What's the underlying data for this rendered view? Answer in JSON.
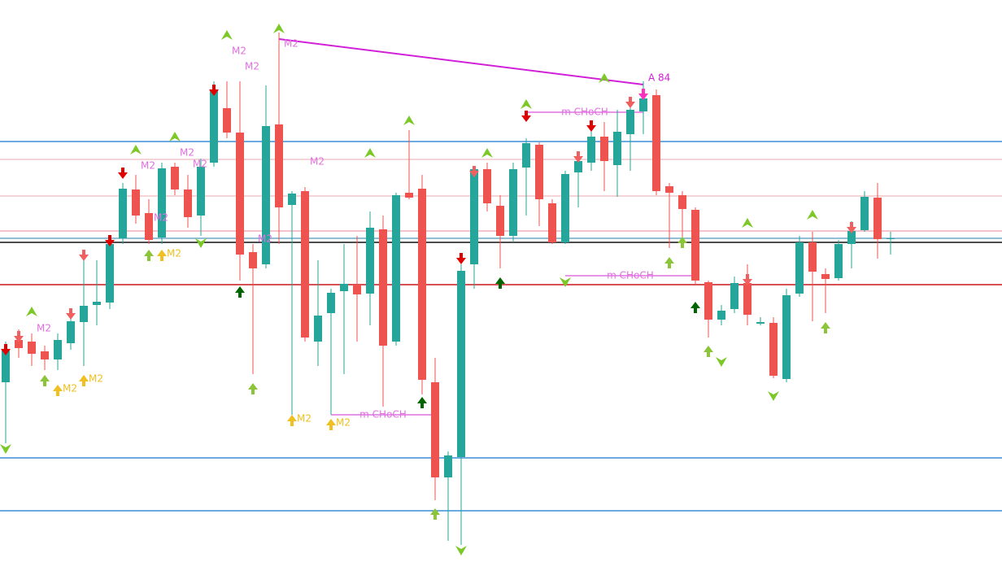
{
  "chart_data": {
    "type": "candlestick",
    "ylim": [
      0,
      707
    ],
    "up_color": "#26a69a",
    "down_color": "#ef5350",
    "open": [
      237,
      289,
      287,
      275,
      265,
      285,
      311,
      332,
      335,
      414,
      474,
      445,
      415,
      502,
      474,
      442,
      507,
      574,
      544,
      397,
      382,
      554,
      455,
      472,
      287,
      322,
      349,
      357,
      346,
      425,
      287,
      470,
      475,
      237,
      120,
      145,
      382,
      499,
      454,
      417,
      501,
      529,
      457,
      409,
      495,
      507,
      539,
      504,
      542,
      570,
      590,
      478,
      467,
      449,
      360,
      314,
      327,
      359,
      309,
      310,
      241,
      346,
      409,
      370,
      365,
      407,
      424,
      464,
      413
    ],
    "high": [
      287,
      302,
      297,
      282,
      297,
      322,
      387,
      387,
      417,
      482,
      492,
      462,
      507,
      507,
      492,
      512,
      607,
      607,
      607,
      407,
      602,
      667,
      472,
      477,
      387,
      352,
      407,
      417,
      447,
      442,
      470,
      547,
      492,
      267,
      152,
      382,
      502,
      507,
      467,
      507,
      537,
      532,
      462,
      497,
      517,
      552,
      557,
      572,
      587,
      607,
      597,
      482,
      472,
      452,
      362,
      332,
      367,
      382,
      317,
      317,
      352,
      417,
      422,
      377,
      412,
      435,
      472,
      482,
      422
    ],
    "low": [
      162,
      267,
      257,
      252,
      252,
      277,
      257,
      307,
      327,
      407,
      432,
      407,
      407,
      467,
      427,
      417,
      502,
      537,
      362,
      247,
      377,
      407,
      197,
      287,
      257,
      197,
      247,
      287,
      307,
      207,
      282,
      462,
      222,
      92,
      42,
      37,
      352,
      447,
      377,
      409,
      442,
      429,
      407,
      407,
      452,
      497,
      472,
      465,
      497,
      542,
      467,
      402,
      407,
      357,
      292,
      307,
      322,
      307,
      307,
      242,
      237,
      342,
      312,
      322,
      362,
      377,
      422,
      389,
      394
    ],
    "close": [
      277,
      279,
      272,
      265,
      289,
      312,
      331,
      336,
      407,
      475,
      442,
      412,
      500,
      474,
      440,
      502,
      597,
      544,
      394,
      377,
      552,
      452,
      469,
      292,
      319,
      347,
      358,
      345,
      427,
      282,
      467,
      464,
      240,
      120,
      147,
      374,
      499,
      457,
      417,
      499,
      531,
      462,
      409,
      493,
      509,
      539,
      509,
      545,
      572,
      586,
      472,
      470,
      450,
      362,
      314,
      325,
      359,
      320,
      311,
      245,
      344,
      409,
      373,
      364,
      407,
      423,
      465,
      413,
      414
    ],
    "levels": [
      {
        "value": 533,
        "color": "#3a8fd8"
      },
      {
        "value": 511,
        "color": "#f2c6cc"
      },
      {
        "value": 466,
        "color": "#f2c6cc"
      },
      {
        "value": 423,
        "color": "#f2b0b8"
      },
      {
        "value": 414,
        "color": "#6fa8c8"
      },
      {
        "value": 409,
        "color": "#111111"
      },
      {
        "value": 357,
        "color": "#c8161d"
      },
      {
        "value": 144,
        "color": "#3a8fd8"
      },
      {
        "value": 79,
        "color": "#3a8fd8"
      }
    ],
    "trendline": {
      "from": {
        "candle": 21,
        "value": 659
      },
      "to": {
        "candle": 49,
        "value": 603
      },
      "color": "#d020d8"
    },
    "choch": [
      {
        "text": "m CHoCH",
        "from": 40,
        "to": 49,
        "value": 569,
        "color": "#e070e0"
      },
      {
        "text": "m CHoCH",
        "from": 43,
        "to": 53,
        "value": 368,
        "color": "#e070e0"
      },
      {
        "text": "m CHoCH",
        "from": 25,
        "to": 33,
        "value": 197,
        "color": "#e070e0"
      }
    ],
    "signals": [
      {
        "kind": "down",
        "candle": 0,
        "value": 275,
        "color": "#e00000"
      },
      {
        "kind": "down",
        "candle": 8,
        "value": 409,
        "color": "#e00000"
      },
      {
        "kind": "down",
        "candle": 9,
        "value": 492,
        "color": "#e00000"
      },
      {
        "kind": "down",
        "candle": 16,
        "value": 594,
        "color": "#e00000"
      },
      {
        "kind": "down",
        "candle": 35,
        "value": 387,
        "color": "#e00000"
      },
      {
        "kind": "down",
        "candle": 40,
        "value": 562,
        "color": "#e00000"
      },
      {
        "kind": "down",
        "candle": 45,
        "value": 550,
        "color": "#e00000"
      },
      {
        "kind": "down",
        "candle": 1,
        "value": 291,
        "color": "#f06060"
      },
      {
        "kind": "down",
        "candle": 5,
        "value": 319,
        "color": "#f06060"
      },
      {
        "kind": "down",
        "candle": 6,
        "value": 391,
        "color": "#f06060"
      },
      {
        "kind": "down",
        "candle": 36,
        "value": 494,
        "color": "#f06060"
      },
      {
        "kind": "down",
        "candle": 44,
        "value": 512,
        "color": "#f06060"
      },
      {
        "kind": "down",
        "candle": 48,
        "value": 579,
        "color": "#f06060"
      },
      {
        "kind": "down",
        "candle": 57,
        "value": 361,
        "color": "#f06060"
      },
      {
        "kind": "down",
        "candle": 65,
        "value": 425,
        "color": "#f06060"
      },
      {
        "kind": "down",
        "candle": 49,
        "value": 589,
        "color": "#ff30c0"
      },
      {
        "kind": "up",
        "candle": 18,
        "value": 350,
        "color": "#006400"
      },
      {
        "kind": "up",
        "candle": 38,
        "value": 361,
        "color": "#006400"
      },
      {
        "kind": "up",
        "candle": 53,
        "value": 331,
        "color": "#006400"
      },
      {
        "kind": "up",
        "candle": 32,
        "value": 214,
        "color": "#006400"
      },
      {
        "kind": "up",
        "candle": 3,
        "value": 241,
        "color": "#8cc43a"
      },
      {
        "kind": "up",
        "candle": 11,
        "value": 395,
        "color": "#8cc43a"
      },
      {
        "kind": "up",
        "candle": 19,
        "value": 231,
        "color": "#8cc43a"
      },
      {
        "kind": "up",
        "candle": 33,
        "value": 77,
        "color": "#8cc43a"
      },
      {
        "kind": "up",
        "candle": 51,
        "value": 386,
        "color": "#8cc43a"
      },
      {
        "kind": "up",
        "candle": 52,
        "value": 411,
        "color": "#8cc43a"
      },
      {
        "kind": "up",
        "candle": 54,
        "value": 277,
        "color": "#8cc43a"
      },
      {
        "kind": "up",
        "candle": 63,
        "value": 306,
        "color": "#8cc43a"
      },
      {
        "kind": "tri-up",
        "candle": 2,
        "value": 322,
        "color": "#7cc828"
      },
      {
        "kind": "tri-up",
        "candle": 10,
        "value": 521,
        "color": "#7cc828"
      },
      {
        "kind": "tri-up",
        "candle": 13,
        "value": 537,
        "color": "#7cc828"
      },
      {
        "kind": "tri-up",
        "candle": 17,
        "value": 662,
        "color": "#7cc828"
      },
      {
        "kind": "tri-up",
        "candle": 21,
        "value": 670,
        "color": "#7cc828"
      },
      {
        "kind": "tri-up",
        "candle": 31,
        "value": 557,
        "color": "#7cc828"
      },
      {
        "kind": "tri-up",
        "candle": 28,
        "value": 517,
        "color": "#7cc828"
      },
      {
        "kind": "tri-up",
        "candle": 37,
        "value": 517,
        "color": "#7cc828"
      },
      {
        "kind": "tri-up",
        "candle": 40,
        "value": 577,
        "color": "#7cc828"
      },
      {
        "kind": "tri-up",
        "candle": 46,
        "value": 609,
        "color": "#7cc828"
      },
      {
        "kind": "tri-up",
        "candle": 57,
        "value": 431,
        "color": "#7cc828"
      },
      {
        "kind": "tri-up",
        "candle": 62,
        "value": 441,
        "color": "#7cc828"
      },
      {
        "kind": "tri-down",
        "candle": 0,
        "value": 157,
        "color": "#7cc828"
      },
      {
        "kind": "tri-down",
        "candle": 15,
        "value": 410,
        "color": "#7cc828"
      },
      {
        "kind": "tri-down",
        "candle": 43,
        "value": 362,
        "color": "#7cc828"
      },
      {
        "kind": "tri-down",
        "candle": 35,
        "value": 32,
        "color": "#7cc828"
      },
      {
        "kind": "tri-down",
        "candle": 59,
        "value": 222,
        "color": "#7cc828"
      },
      {
        "kind": "tri-down",
        "candle": 55,
        "value": 264,
        "color": "#7cc828"
      },
      {
        "kind": "up",
        "candle": 4,
        "value": 229,
        "color": "#f0c020"
      },
      {
        "kind": "up",
        "candle": 6,
        "value": 241,
        "color": "#f0c020"
      },
      {
        "kind": "up",
        "candle": 12,
        "value": 395,
        "color": "#f0c020"
      },
      {
        "kind": "up",
        "candle": 22,
        "value": 192,
        "color": "#f0c020"
      },
      {
        "kind": "up",
        "candle": 25,
        "value": 187,
        "color": "#f0c020"
      }
    ],
    "labels": [
      {
        "text": "M2",
        "candle": 2,
        "value": 303,
        "color": "#e070e0"
      },
      {
        "text": "M2",
        "candle": 10,
        "value": 503,
        "color": "#e070e0"
      },
      {
        "text": "M2",
        "candle": 13,
        "value": 519,
        "color": "#e070e0"
      },
      {
        "text": "M2",
        "candle": 14,
        "value": 505,
        "color": "#e070e0"
      },
      {
        "text": "M2",
        "candle": 17,
        "value": 644,
        "color": "#e070e0"
      },
      {
        "text": "M2",
        "candle": 18,
        "value": 625,
        "color": "#e070e0"
      },
      {
        "text": "M2",
        "candle": 21,
        "value": 653,
        "color": "#e070e0"
      },
      {
        "text": "M2",
        "candle": 23,
        "value": 508,
        "color": "#e070e0"
      },
      {
        "text": "M2",
        "candle": 11,
        "value": 439,
        "color": "#e070e0"
      },
      {
        "text": "M2",
        "candle": 19,
        "value": 413,
        "color": "#e070e0"
      },
      {
        "text": "M2",
        "candle": 4,
        "value": 229,
        "color": "#f0c020"
      },
      {
        "text": "M2",
        "candle": 6,
        "value": 241,
        "color": "#f0c020"
      },
      {
        "text": "M2",
        "candle": 12,
        "value": 395,
        "color": "#f0c020"
      },
      {
        "text": "M2",
        "candle": 22,
        "value": 192,
        "color": "#f0c020"
      },
      {
        "text": "M2",
        "candle": 25,
        "value": 187,
        "color": "#f0c020"
      },
      {
        "text": "A 84",
        "candle": 49,
        "value": 611,
        "color": "#d020d8"
      }
    ]
  }
}
